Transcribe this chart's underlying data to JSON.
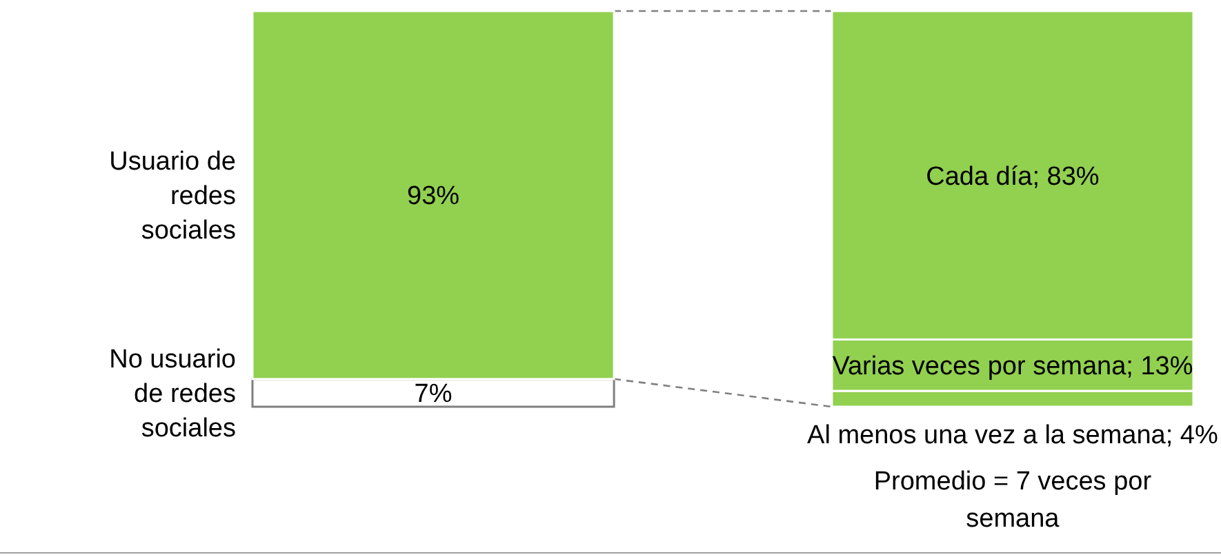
{
  "chart_data": {
    "type": "bar",
    "stacked": true,
    "categories": [
      null,
      null
    ],
    "series": [
      {
        "name": "No usuario de redes sociales",
        "color": "#ffffff",
        "values": [
          7,
          null
        ],
        "value_labels": [
          "7%",
          null
        ]
      },
      {
        "name": "Usuario de redes sociales",
        "color": "#92d050",
        "values": [
          93,
          null
        ],
        "value_labels": [
          "93%",
          null
        ]
      },
      {
        "color": "#92d050",
        "values": [
          null,
          4
        ],
        "value_labels": [
          null,
          "Al menos una vez a la semana; 4%"
        ]
      },
      {
        "color": "#92d050",
        "values": [
          null,
          13
        ],
        "value_labels": [
          null,
          "Varias veces por semana; 13%"
        ]
      },
      {
        "color": "#92d050",
        "values": [
          null,
          83
        ],
        "value_labels": [
          null,
          "Cada día; 83%"
        ]
      }
    ],
    "annotations": [
      "Promedio = 7 veces por semana"
    ]
  }
}
